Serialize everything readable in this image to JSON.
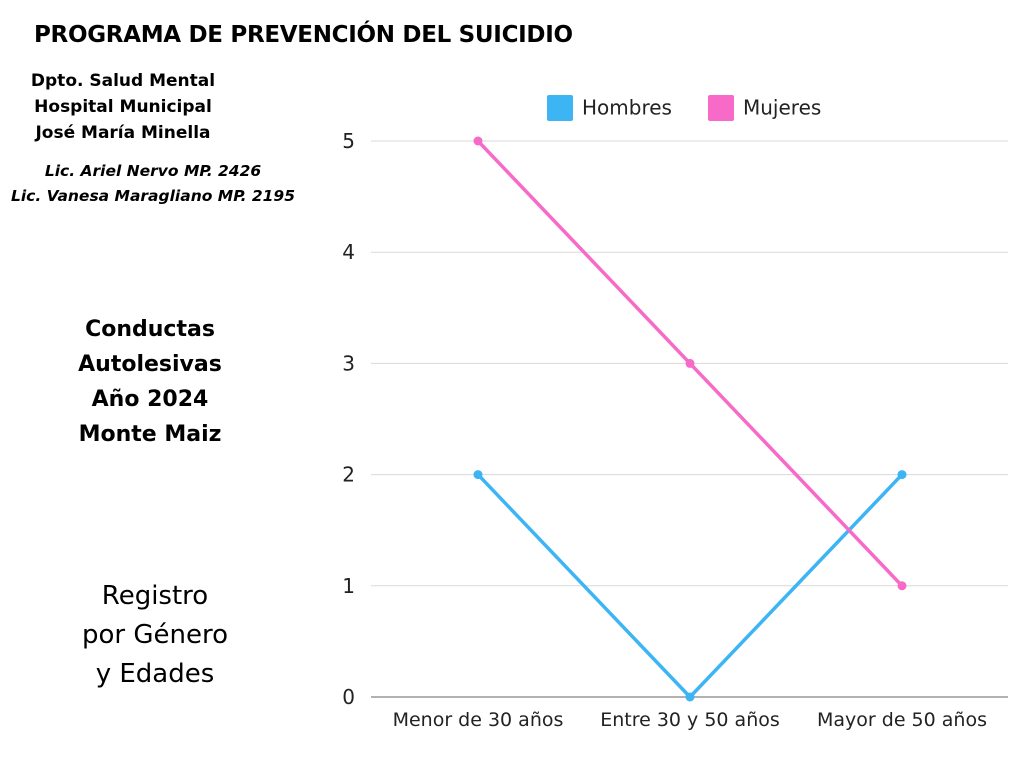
{
  "header": {
    "program_title": "PROGRAMA DE PREVENCIÓN DEL SUICIDIO"
  },
  "institution": {
    "lines": [
      "Dpto. Salud Mental",
      "Hospital Municipal",
      "José María Minella"
    ]
  },
  "authors": {
    "lines": [
      "Lic. Ariel Nervo MP. 2426",
      "Lic. Vanesa Maragliano MP. 2195"
    ]
  },
  "topic": {
    "lines": [
      "Conductas",
      "Autolesivas",
      "Año 2024",
      "Monte Maiz"
    ]
  },
  "record": {
    "lines": [
      "Registro",
      "por Género",
      "y Edades"
    ]
  },
  "chart_data": {
    "type": "line",
    "title": "",
    "xlabel": "",
    "ylabel": "",
    "categories": [
      "Menor de 30 años",
      "Entre 30 y 50 años",
      "Mayor de 50 años"
    ],
    "series": [
      {
        "name": "Hombres",
        "values": [
          2,
          0,
          2
        ],
        "color": "#3db5f5"
      },
      {
        "name": "Mujeres",
        "values": [
          5,
          3,
          1
        ],
        "color": "#f76ac8"
      }
    ],
    "ylim": [
      0,
      5
    ],
    "yticks": [
      "0",
      "1",
      "2",
      "3",
      "4",
      "5"
    ],
    "grid": true,
    "legend": "top-center",
    "colors": {
      "grid": "#d9d9d9",
      "axis": "#999999"
    }
  }
}
